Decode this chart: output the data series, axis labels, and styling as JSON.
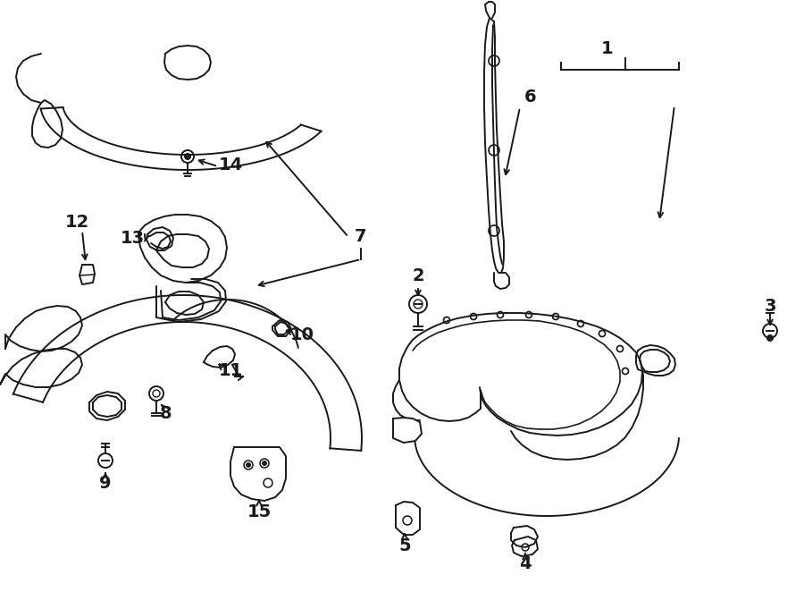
{
  "background_color": "#ffffff",
  "line_color": "#1a1a1a",
  "line_width": 1.4,
  "label_fontsize": 14,
  "figsize": [
    9.0,
    6.62
  ],
  "dpi": 100,
  "xlim": [
    0,
    900
  ],
  "ylim": [
    0,
    662
  ]
}
